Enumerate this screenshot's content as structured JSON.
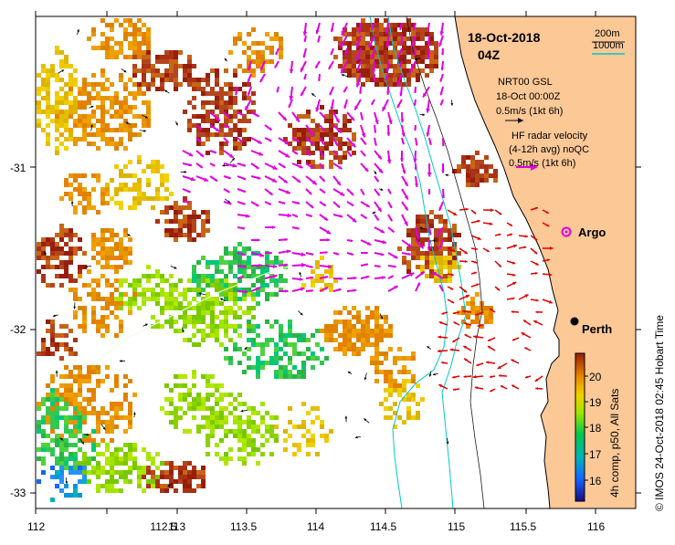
{
  "map": {
    "date_label": "18-Oct-2018",
    "time_label": "04Z",
    "legend_depth_200": "200m",
    "legend_depth_1000": "1000m",
    "legend_depth_200_color": "#1a1a1a",
    "legend_depth_1000_color": "#00c8c8",
    "gsl_line1": "NRT00 GSL",
    "gsl_line2": "18-Oct 00:00Z",
    "gsl_line3": "0.5m/s (1kt 6h)",
    "hf_line1": "HF radar velocity",
    "hf_line2": "(4-12h avg) noQC",
    "hf_line3": "0.5m/s (1kt 6h)",
    "argo_label": "Argo",
    "city_label": "Perth",
    "credit": "© IMOS 24-Oct-2018 02:45 Hobart Time",
    "colorbar_title": "4h comp, p50, All Sats",
    "colorbar_ticks": [
      "20",
      "19",
      "18",
      "17",
      "16"
    ],
    "x_ticks": [
      "112",
      "112.5",
      "113",
      "113.5",
      "114",
      "114.5",
      "115",
      "115.5",
      "116"
    ],
    "y_ticks": [
      "-31",
      "-32",
      "-33"
    ],
    "colors": {
      "land": "#fcc896",
      "hf_arrow": "#e000e0",
      "gsl_arrow": "#e00000",
      "argo": "#e000e0",
      "isobath_1000": "#00c8c8",
      "isobath_200": "#1a1a1a"
    }
  }
}
